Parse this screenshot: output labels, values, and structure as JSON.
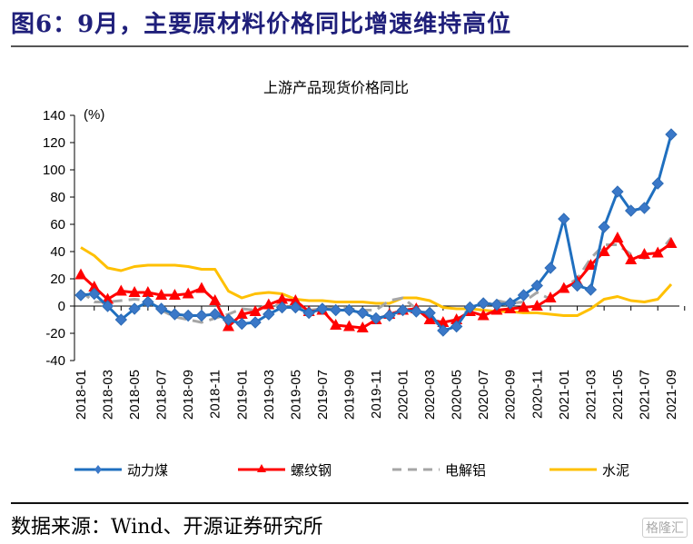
{
  "page": {
    "figure_title": "图6：9月，主要原材料价格同比增速维持高位",
    "source": "数据来源：Wind、开源证券研究所",
    "watermark": "格隆汇"
  },
  "chart_data": {
    "type": "line",
    "title": "上游产品现货价格同比",
    "ylabel": "(%)",
    "xlabel": "",
    "ylim": [
      -40,
      140
    ],
    "yticks": [
      -40,
      -20,
      0,
      20,
      40,
      60,
      80,
      100,
      120,
      140
    ],
    "grid": false,
    "legend_position": "bottom",
    "x": [
      "2018-01",
      "2018-02",
      "2018-03",
      "2018-04",
      "2018-05",
      "2018-06",
      "2018-07",
      "2018-08",
      "2018-09",
      "2018-10",
      "2018-11",
      "2018-12",
      "2019-01",
      "2019-02",
      "2019-03",
      "2019-04",
      "2019-05",
      "2019-06",
      "2019-07",
      "2019-08",
      "2019-09",
      "2019-10",
      "2019-11",
      "2019-12",
      "2020-01",
      "2020-02",
      "2020-03",
      "2020-04",
      "2020-05",
      "2020-06",
      "2020-07",
      "2020-08",
      "2020-09",
      "2020-10",
      "2020-11",
      "2020-12",
      "2021-01",
      "2021-02",
      "2021-03",
      "2021-04",
      "2021-05",
      "2021-06",
      "2021-07",
      "2021-08",
      "2021-09"
    ],
    "xtick_labels": [
      "2018-01",
      "2018-03",
      "2018-05",
      "2018-07",
      "2018-09",
      "2018-11",
      "2019-01",
      "2019-03",
      "2019-05",
      "2019-07",
      "2019-09",
      "2019-11",
      "2020-01",
      "2020-03",
      "2020-05",
      "2020-07",
      "2020-09",
      "2020-11",
      "2021-01",
      "2021-03",
      "2021-05",
      "2021-07",
      "2021-09"
    ],
    "series": [
      {
        "name": "动力煤",
        "color": "#1f6fbf",
        "marker": "diamond",
        "dash": false,
        "values": [
          8,
          9,
          0,
          -10,
          -2,
          3,
          -2,
          -6,
          -7,
          -7,
          -6,
          -10,
          -13,
          -12,
          -6,
          -1,
          -1,
          -5,
          -2,
          -3,
          -3,
          -5,
          -9,
          -7,
          -3,
          -4,
          -5,
          -18,
          -15,
          -1,
          2,
          1,
          2,
          8,
          15,
          28,
          64,
          15,
          12,
          58,
          84,
          70,
          72,
          90,
          126
        ]
      },
      {
        "name": "螺纹钢",
        "color": "#ff0000",
        "marker": "triangle",
        "dash": false,
        "values": [
          23,
          14,
          5,
          11,
          10,
          10,
          8,
          8,
          9,
          13,
          4,
          -15,
          -6,
          -4,
          1,
          5,
          4,
          -4,
          -3,
          -14,
          -15,
          -16,
          -10,
          -6,
          -3,
          -2,
          -10,
          -12,
          -10,
          -4,
          -7,
          -3,
          -2,
          -1,
          0,
          6,
          13,
          18,
          30,
          40,
          50,
          34,
          38,
          39,
          46
        ]
      },
      {
        "name": "电解铝",
        "color": "#a6a6a6",
        "marker": "none",
        "dash": true,
        "values": [
          11,
          3,
          3,
          4,
          5,
          4,
          -3,
          -8,
          -10,
          -12,
          -9,
          -6,
          -2,
          -3,
          1,
          0,
          -1,
          -3,
          -2,
          -1,
          -2,
          -3,
          -3,
          4,
          6,
          -2,
          -10,
          -15,
          -10,
          -2,
          0,
          4,
          2,
          3,
          10,
          5,
          14,
          20,
          35,
          45,
          45,
          38,
          35,
          38,
          50
        ]
      },
      {
        "name": "水泥",
        "color": "#ffc000",
        "marker": "none",
        "dash": false,
        "values": [
          43,
          37,
          28,
          26,
          29,
          30,
          30,
          30,
          29,
          27,
          27,
          11,
          6,
          9,
          10,
          9,
          5,
          4,
          4,
          3,
          3,
          3,
          2,
          2,
          6,
          6,
          4,
          -1,
          -2,
          -2,
          -3,
          -4,
          -4,
          -5,
          -5,
          -6,
          -7,
          -7,
          -2,
          5,
          7,
          4,
          3,
          5,
          16
        ]
      }
    ]
  }
}
